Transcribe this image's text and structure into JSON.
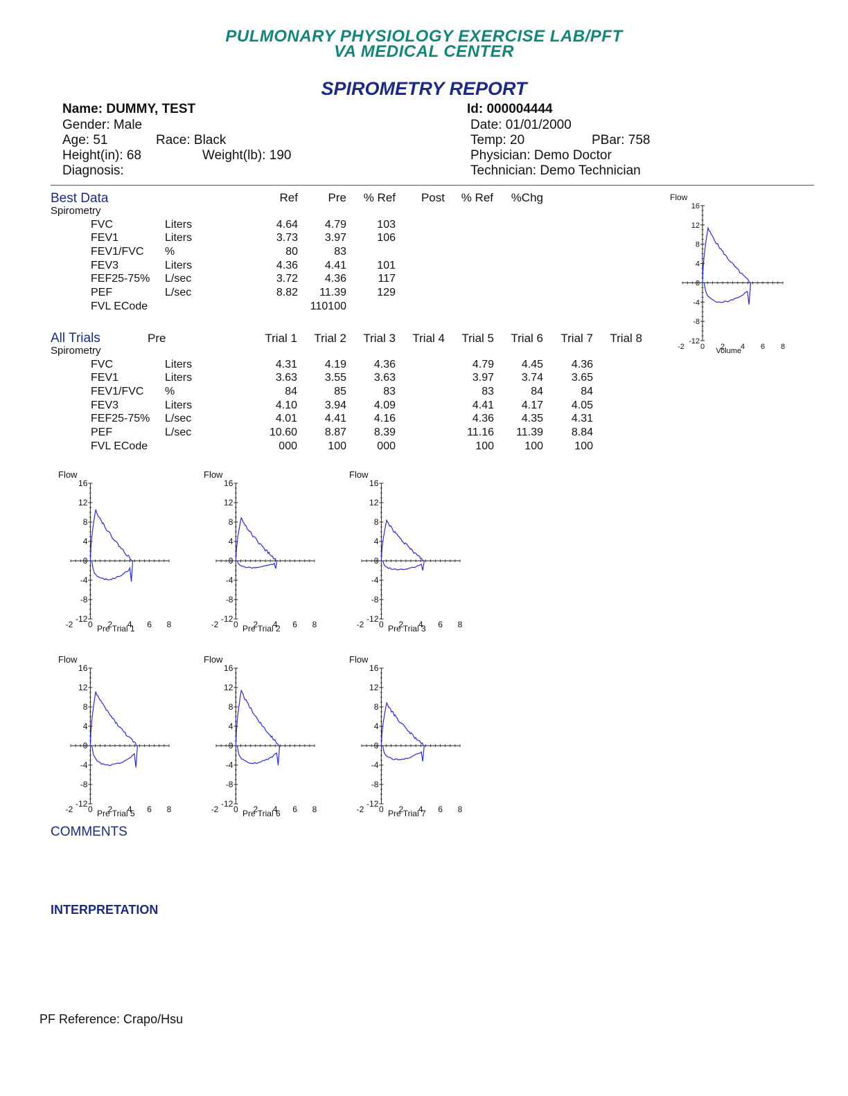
{
  "header": {
    "line1": "PULMONARY PHYSIOLOGY EXERCISE LAB/PFT",
    "line2": "VA MEDICAL CENTER",
    "report_title": "SPIROMETRY REPORT"
  },
  "patient": {
    "name": "Name: DUMMY, TEST",
    "gender": "Gender: Male",
    "age": "Age:  51",
    "race": "Race: Black",
    "height": "Height(in): 68",
    "weight": "Weight(lb): 190",
    "diagnosis": "Diagnosis:",
    "id": "Id: 000004444",
    "date": "Date:  01/01/2000",
    "temp": "Temp:  20",
    "pbar": "PBar: 758",
    "physician": "Physician:  Demo Doctor",
    "technician": "Technician:  Demo Technician"
  },
  "best_data": {
    "title": "Best Data",
    "subtitle": "Spirometry",
    "columns": [
      "Ref",
      "Pre",
      "% Ref",
      "Post",
      "% Ref",
      "%Chg"
    ],
    "rows": [
      {
        "param": "FVC",
        "unit": "Liters",
        "ref": "4.64",
        "pre": "4.79",
        "pct_ref": "103"
      },
      {
        "param": "FEV1",
        "unit": "Liters",
        "ref": "3.73",
        "pre": "3.97",
        "pct_ref": "106"
      },
      {
        "param": "FEV1/FVC",
        "unit": "%",
        "ref": "80",
        "pre": "83",
        "pct_ref": ""
      },
      {
        "param": "FEV3",
        "unit": "Liters",
        "ref": "4.36",
        "pre": "4.41",
        "pct_ref": "101"
      },
      {
        "param": "FEF25-75%",
        "unit": "L/sec",
        "ref": "3.72",
        "pre": "4.36",
        "pct_ref": "117"
      },
      {
        "param": "PEF",
        "unit": "L/sec",
        "ref": "8.82",
        "pre": "11.39",
        "pct_ref": "129"
      },
      {
        "param": "FVL ECode",
        "unit": "",
        "ref": "",
        "pre": "110100",
        "pct_ref": ""
      }
    ]
  },
  "all_trials": {
    "title": "All Trials",
    "pre_label": "Pre",
    "subtitle": "Spirometry",
    "columns": [
      "Trial 1",
      "Trial 2",
      "Trial 3",
      "Trial 4",
      "Trial 5",
      "Trial 6",
      "Trial 7",
      "Trial 8"
    ],
    "rows": [
      {
        "param": "FVC",
        "unit": "Liters",
        "values": [
          "4.31",
          "4.19",
          "4.36",
          "",
          "4.79",
          "4.45",
          "4.36",
          ""
        ]
      },
      {
        "param": "FEV1",
        "unit": "Liters",
        "values": [
          "3.63",
          "3.55",
          "3.63",
          "",
          "3.97",
          "3.74",
          "3.65",
          ""
        ]
      },
      {
        "param": "FEV1/FVC",
        "unit": "%",
        "values": [
          "84",
          "85",
          "83",
          "",
          "83",
          "84",
          "84",
          ""
        ]
      },
      {
        "param": "FEV3",
        "unit": "Liters",
        "values": [
          "4.10",
          "3.94",
          "4.09",
          "",
          "4.41",
          "4.17",
          "4.05",
          ""
        ]
      },
      {
        "param": "FEF25-75%",
        "unit": "L/sec",
        "values": [
          "4.01",
          "4.41",
          "4.16",
          "",
          "4.36",
          "4.35",
          "4.31",
          ""
        ]
      },
      {
        "param": "PEF",
        "unit": "L/sec",
        "values": [
          "10.60",
          "8.87",
          "8.39",
          "",
          "11.16",
          "11.39",
          "8.84",
          ""
        ]
      },
      {
        "param": "FVL ECode",
        "unit": "",
        "values": [
          "000",
          "100",
          "000",
          "",
          "100",
          "100",
          "100",
          ""
        ]
      }
    ]
  },
  "chart_data": [
    {
      "type": "line",
      "id": "best",
      "ylabel": "Flow",
      "xlabel": "Volume",
      "xlim": [
        -2,
        8
      ],
      "ylim": [
        -12,
        16
      ],
      "xticks": [
        "-2",
        "0",
        "2",
        "4",
        "6",
        "8"
      ],
      "yticks": [
        "16",
        "12",
        "8",
        "4",
        "0",
        "-4",
        "-8",
        "-12"
      ],
      "fvc": 4.79,
      "pef": 11.39,
      "insp_min": -5.0,
      "color": "#2a2ad0"
    },
    {
      "type": "line",
      "id": "t1",
      "ylabel": "Flow",
      "xlabel": "Pre  Trial 1",
      "xlim": [
        -2,
        8
      ],
      "ylim": [
        -12,
        16
      ],
      "xticks": [
        "-2",
        "0",
        "2",
        "4",
        "6",
        "8"
      ],
      "yticks": [
        "16",
        "12",
        "8",
        "4",
        "0",
        "-4",
        "-8",
        "-12"
      ],
      "fvc": 4.31,
      "pef": 10.6,
      "insp_min": -4.8,
      "color": "#2a2ad0"
    },
    {
      "type": "line",
      "id": "t2",
      "ylabel": "Flow",
      "xlabel": "Pre  Trial 2",
      "xlim": [
        -2,
        8
      ],
      "ylim": [
        -12,
        16
      ],
      "xticks": [
        "-2",
        "0",
        "2",
        "4",
        "6",
        "8"
      ],
      "yticks": [
        "16",
        "12",
        "8",
        "4",
        "0",
        "-4",
        "-8",
        "-12"
      ],
      "fvc": 4.19,
      "pef": 8.87,
      "insp_min": -1.8,
      "color": "#2a2ad0"
    },
    {
      "type": "line",
      "id": "t3",
      "ylabel": "Flow",
      "xlabel": "Pre  Trial 3",
      "xlim": [
        -2,
        8
      ],
      "ylim": [
        -12,
        16
      ],
      "xticks": [
        "-2",
        "0",
        "2",
        "4",
        "6",
        "8"
      ],
      "yticks": [
        "16",
        "12",
        "8",
        "4",
        "0",
        "-4",
        "-8",
        "-12"
      ],
      "fvc": 4.36,
      "pef": 8.39,
      "insp_min": -2.2,
      "color": "#2a2ad0"
    },
    {
      "type": "line",
      "id": "t5",
      "ylabel": "Flow",
      "xlabel": "Pre  Trial 5",
      "xlim": [
        -2,
        8
      ],
      "ylim": [
        -12,
        16
      ],
      "xticks": [
        "-2",
        "0",
        "2",
        "4",
        "6",
        "8"
      ],
      "yticks": [
        "16",
        "12",
        "8",
        "4",
        "0",
        "-4",
        "-8",
        "-12"
      ],
      "fvc": 4.79,
      "pef": 11.16,
      "insp_min": -5.0,
      "color": "#2a2ad0"
    },
    {
      "type": "line",
      "id": "t6",
      "ylabel": "Flow",
      "xlabel": "Pre  Trial 6",
      "xlim": [
        -2,
        8
      ],
      "ylim": [
        -12,
        16
      ],
      "xticks": [
        "-2",
        "0",
        "2",
        "4",
        "6",
        "8"
      ],
      "yticks": [
        "16",
        "12",
        "8",
        "4",
        "0",
        "-4",
        "-8",
        "-12"
      ],
      "fvc": 4.45,
      "pef": 11.39,
      "insp_min": -4.5,
      "color": "#2a2ad0"
    },
    {
      "type": "line",
      "id": "t7",
      "ylabel": "Flow",
      "xlabel": "Pre  Trial 7",
      "xlim": [
        -2,
        8
      ],
      "ylim": [
        -12,
        16
      ],
      "xticks": [
        "-2",
        "0",
        "2",
        "4",
        "6",
        "8"
      ],
      "yticks": [
        "16",
        "12",
        "8",
        "4",
        "0",
        "-4",
        "-8",
        "-12"
      ],
      "fvc": 4.36,
      "pef": 8.84,
      "insp_min": -3.6,
      "color": "#2a2ad0"
    }
  ],
  "comments_label": "COMMENTS",
  "interpretation_label": "INTERPRETATION",
  "footer": "PF Reference: Crapo/Hsu"
}
